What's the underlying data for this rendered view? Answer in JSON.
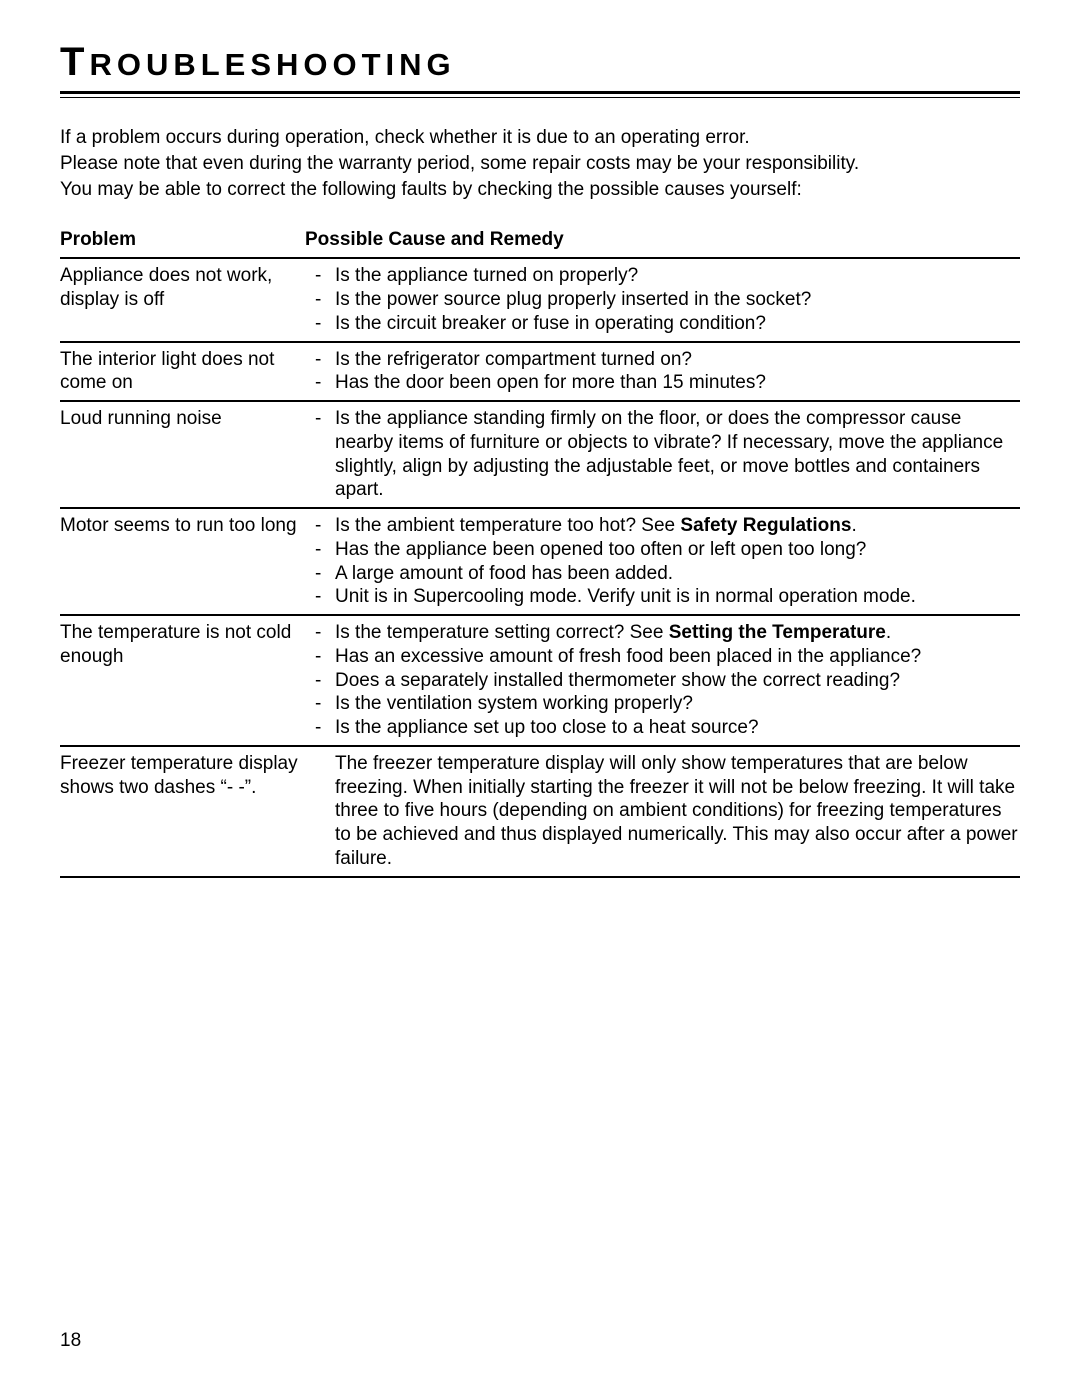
{
  "title_first": "T",
  "title_rest": "ROUBLESHOOTING",
  "intro": {
    "p1": "If a problem occurs during operation, check whether it is due to an operating error.",
    "p2": "Please note that even during the warranty period, some repair costs may be your responsibility.",
    "p3": "You may be able to correct the following faults by checking the possible causes yourself:"
  },
  "headers": {
    "problem": "Problem",
    "remedy": "Possible Cause and Remedy"
  },
  "rows": [
    {
      "problem": "Appliance does not work, display is off",
      "type": "list",
      "items": [
        {
          "text": "Is the appliance turned on properly?"
        },
        {
          "text": "Is the power source plug properly inserted in the socket?"
        },
        {
          "text": "Is the circuit breaker or fuse in operating condition?"
        }
      ]
    },
    {
      "problem": "The interior light does not come on",
      "type": "list",
      "items": [
        {
          "text": "Is the refrigerator compartment turned on?"
        },
        {
          "text": "Has the door been open for more than 15 minutes?"
        }
      ]
    },
    {
      "problem": "Loud running noise",
      "type": "list",
      "items": [
        {
          "text": "Is the appliance standing firmly on the floor, or does the compressor cause nearby items of furniture or objects to vibrate? If necessary, move the appliance slightly, align by adjusting the adjustable feet, or move bottles and containers apart."
        }
      ]
    },
    {
      "problem": "Motor seems to run too long",
      "type": "list",
      "items": [
        {
          "pre": "Is the ambient temperature too hot? See ",
          "bold": "Safety Regulations",
          "post": "."
        },
        {
          "text": "Has the appliance been opened too often or left open too long?"
        },
        {
          "text": "A large amount of food has been added."
        },
        {
          "text": "Unit is in Supercooling mode. Verify unit is in normal operation mode."
        }
      ]
    },
    {
      "problem": "The temperature is not cold enough",
      "type": "list",
      "items": [
        {
          "pre": "Is the temperature setting correct? See ",
          "bold": "Setting the Temperature",
          "post": "."
        },
        {
          "text": "Has an excessive amount of fresh food been placed in the appliance?"
        },
        {
          "text": "Does a separately installed thermometer show the correct reading?"
        },
        {
          "text": "Is the ventilation system working properly?"
        },
        {
          "text": "Is the appliance set up too close to a heat source?"
        }
      ]
    },
    {
      "problem": "Freezer temperature display shows two dashes “- -”.",
      "type": "para",
      "para": "The freezer temperature display will only show temperatures that are below freezing. When initially starting the freezer it will not be below freezing. It will take three to five hours (depending on ambient conditions) for freezing temperatures to be achieved and thus displayed numerically. This may also occur after a power failure."
    }
  ],
  "page_number": "18"
}
